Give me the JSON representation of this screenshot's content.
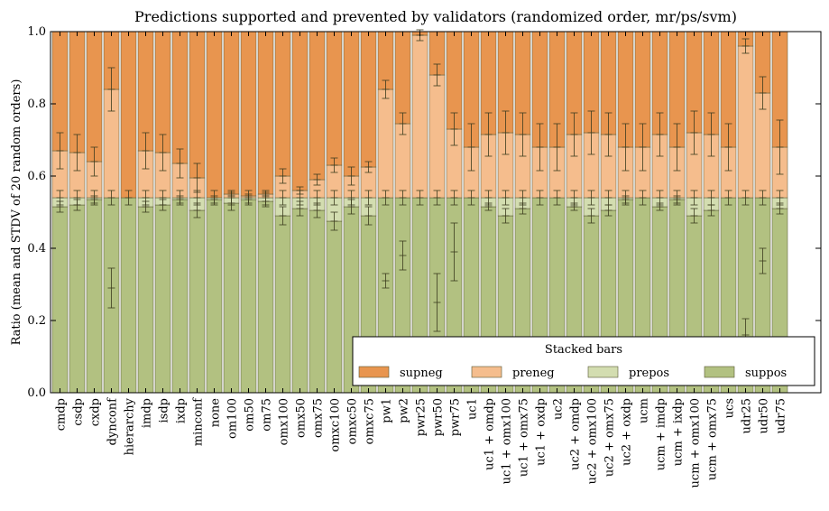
{
  "chart_data": {
    "type": "bar",
    "stacked": true,
    "title": "Predictions supported and prevented by validators (randomized order, mr/ps/svm)",
    "xlabel": "",
    "ylabel": "Ratio (mean and STDV of 20 random orders)",
    "ylim": [
      0,
      1.0
    ],
    "yticks": [
      "0.0",
      "0.2",
      "0.4",
      "0.6",
      "0.8",
      "1.0"
    ],
    "grid": false,
    "legend": {
      "title": "Stacked bars",
      "placement": "lower-right"
    },
    "colors": {
      "supneg": "#e8954f",
      "preneg": "#f5bd8d",
      "prepos": "#d3ddb0",
      "suppos": "#b2c181"
    },
    "categories": [
      "cmdp",
      "csdp",
      "cxdp",
      "dynconf",
      "hierarchy",
      "imdp",
      "isdp",
      "ixdp",
      "minconf",
      "none",
      "om100",
      "om50",
      "om75",
      "omx100",
      "omx50",
      "omx75",
      "omxc100",
      "omxc50",
      "omxc75",
      "pw1",
      "pw2",
      "pwr25",
      "pwr50",
      "pwr75",
      "uc1",
      "uc1 + omdp",
      "uc1 + omx100",
      "uc1 + omx75",
      "uc1 + oxdp",
      "uc2",
      "uc2 + omdp",
      "uc2 + omx100",
      "uc2 + omx75",
      "uc2 + oxdp",
      "ucm",
      "ucm + imdp",
      "ucm + ixdp",
      "ucm + omx100",
      "ucm + omx75",
      "ucs",
      "udr25",
      "udr50",
      "udr75"
    ],
    "series": [
      {
        "name": "suppos",
        "values": [
          0.515,
          0.52,
          0.535,
          0.54,
          0.54,
          0.515,
          0.52,
          0.535,
          0.505,
          0.535,
          0.525,
          0.535,
          0.53,
          0.49,
          0.51,
          0.505,
          0.475,
          0.515,
          0.49,
          0.54,
          0.54,
          0.54,
          0.54,
          0.54,
          0.54,
          0.515,
          0.49,
          0.51,
          0.54,
          0.54,
          0.515,
          0.49,
          0.505,
          0.535,
          0.54,
          0.515,
          0.535,
          0.49,
          0.505,
          0.54,
          0.54,
          0.54,
          0.51
        ],
        "errors": [
          0.015,
          0.015,
          0.01,
          0.0,
          0.0,
          0.015,
          0.015,
          0.01,
          0.02,
          0.01,
          0.02,
          0.01,
          0.015,
          0.025,
          0.02,
          0.02,
          0.025,
          0.02,
          0.025,
          0.0,
          0.0,
          0.0,
          0.0,
          0.0,
          0.0,
          0.01,
          0.02,
          0.015,
          0.0,
          0.0,
          0.01,
          0.02,
          0.015,
          0.01,
          0.0,
          0.01,
          0.01,
          0.02,
          0.015,
          0.0,
          0.0,
          0.0,
          0.015
        ]
      },
      {
        "name": "prepos",
        "values": [
          0.025,
          0.02,
          0.005,
          0.0,
          0.0,
          0.025,
          0.02,
          0.005,
          0.035,
          0.005,
          0.015,
          0.005,
          0.01,
          0.05,
          0.03,
          0.035,
          0.065,
          0.025,
          0.05,
          0.0,
          0.0,
          0.0,
          0.0,
          0.0,
          0.0,
          0.025,
          0.05,
          0.03,
          0.0,
          0.0,
          0.025,
          0.05,
          0.035,
          0.005,
          0.0,
          0.025,
          0.005,
          0.05,
          0.035,
          0.0,
          0.0,
          0.0,
          0.03
        ]
      },
      {
        "name": "preneg",
        "values": [
          0.13,
          0.125,
          0.1,
          0.3,
          0.0,
          0.13,
          0.125,
          0.095,
          0.055,
          0.0,
          0.01,
          0.005,
          0.01,
          0.06,
          0.02,
          0.05,
          0.09,
          0.06,
          0.085,
          0.3,
          0.205,
          0.45,
          0.34,
          0.19,
          0.14,
          0.175,
          0.18,
          0.175,
          0.14,
          0.14,
          0.175,
          0.18,
          0.175,
          0.14,
          0.14,
          0.175,
          0.14,
          0.18,
          0.175,
          0.14,
          0.42,
          0.29,
          0.14
        ],
        "errors": [
          0.05,
          0.05,
          0.04,
          0.06,
          0.0,
          0.05,
          0.05,
          0.04,
          0.04,
          0.0,
          0.005,
          0.005,
          0.005,
          0.02,
          0.01,
          0.015,
          0.02,
          0.025,
          0.015,
          0.025,
          0.03,
          0.015,
          0.03,
          0.045,
          0.065,
          0.06,
          0.06,
          0.06,
          0.065,
          0.065,
          0.06,
          0.06,
          0.06,
          0.065,
          0.065,
          0.06,
          0.065,
          0.06,
          0.06,
          0.065,
          0.02,
          0.045,
          0.075
        ]
      },
      {
        "name": "supneg",
        "values": [
          0.33,
          0.335,
          0.36,
          0.16,
          0.46,
          0.33,
          0.335,
          0.365,
          0.405,
          0.46,
          0.45,
          0.455,
          0.45,
          0.4,
          0.44,
          0.41,
          0.37,
          0.4,
          0.375,
          0.16,
          0.255,
          0.01,
          0.12,
          0.27,
          0.32,
          0.285,
          0.28,
          0.285,
          0.32,
          0.32,
          0.285,
          0.28,
          0.285,
          0.32,
          0.32,
          0.285,
          0.32,
          0.28,
          0.285,
          0.32,
          0.04,
          0.17,
          0.32
        ]
      }
    ],
    "prepos_error_bars": {
      "dynconf": {
        "value": 0.29,
        "error": 0.055
      },
      "pw1": {
        "value": 0.31,
        "error": 0.02
      },
      "pw2": {
        "value": 0.38,
        "error": 0.04
      },
      "pwr50": {
        "value": 0.25,
        "error": 0.08
      },
      "pwr75": {
        "value": 0.39,
        "error": 0.08
      },
      "udr25": {
        "value": 0.16,
        "error": 0.045
      },
      "udr50": {
        "value": 0.365,
        "error": 0.035
      }
    }
  }
}
